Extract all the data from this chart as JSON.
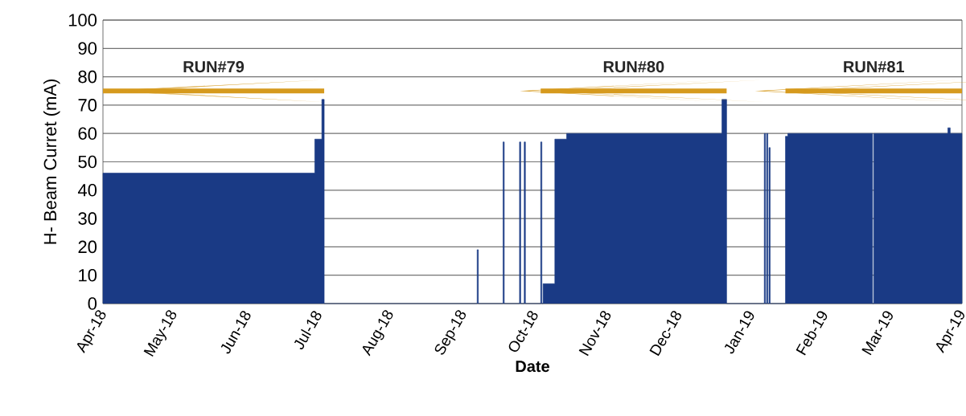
{
  "chart_data": {
    "type": "area",
    "ylabel": "H- Beam Curret (mA)",
    "xlabel": "Date",
    "x": [
      "2018-04-01",
      "2018-04-01",
      "2018-06-30",
      "2018-06-30",
      "2018-07-03",
      "2018-07-03",
      "2018-07-04",
      "2018-07-04",
      "2018-09-07",
      "2018-09-07",
      "2018-09-07T12:00",
      "2018-09-07T12:00",
      "2018-09-18",
      "2018-09-18",
      "2018-09-18T12:00",
      "2018-09-18T12:00",
      "2018-09-25",
      "2018-09-25",
      "2018-09-25T12:00",
      "2018-09-25T12:00",
      "2018-09-27",
      "2018-09-27",
      "2018-09-27T12:00",
      "2018-09-27T12:00",
      "2018-10-04",
      "2018-10-04",
      "2018-10-04T12:00",
      "2018-10-04T12:00",
      "2018-10-05",
      "2018-10-05",
      "2018-10-10",
      "2018-10-10",
      "2018-10-15",
      "2018-10-15",
      "2018-12-20",
      "2018-12-20",
      "2018-12-22",
      "2018-12-22",
      "2019-01-07",
      "2019-01-07",
      "2019-01-07T12:00",
      "2019-01-07T12:00",
      "2019-01-08",
      "2019-01-08",
      "2019-01-08T12:00",
      "2019-01-08T12:00",
      "2019-01-09",
      "2019-01-09",
      "2019-01-09T12:00",
      "2019-01-09T12:00",
      "2019-01-16",
      "2019-01-16",
      "2019-01-17",
      "2019-01-17",
      "2019-02-22",
      "2019-02-22",
      "2019-02-22T12:00",
      "2019-02-22T12:00",
      "2019-03-26",
      "2019-03-26",
      "2019-03-27",
      "2019-03-27",
      "2019-04-01",
      "2019-04-01"
    ],
    "series": [
      {
        "color": "#1a3a85",
        "values": [
          0,
          46,
          46,
          58,
          58,
          72,
          72,
          0,
          0,
          19,
          19,
          0,
          0,
          57,
          57,
          0,
          0,
          57,
          57,
          0,
          0,
          57,
          57,
          0,
          0,
          57,
          57,
          0,
          0,
          7,
          7,
          58,
          58,
          60,
          60,
          72,
          72,
          0,
          0,
          60,
          60,
          0,
          0,
          60,
          60,
          0,
          0,
          55,
          55,
          0,
          0,
          59,
          59,
          60,
          60,
          0,
          0,
          60,
          60,
          62,
          62,
          60,
          60,
          0
        ]
      },
      {
        "type": "line",
        "name": "RUN#79",
        "color": "#d69a1e",
        "x": [
          "2018-04-01",
          "2018-07-04"
        ],
        "values": [
          75,
          75
        ]
      },
      {
        "type": "line",
        "name": "RUN#80",
        "color": "#d69a1e",
        "x": [
          "2018-10-04",
          "2018-12-22"
        ],
        "values": [
          75,
          75
        ]
      },
      {
        "type": "line",
        "name": "RUN#81",
        "color": "#d69a1e",
        "x": [
          "2019-01-16",
          "2019-04-01"
        ],
        "values": [
          75,
          75
        ]
      }
    ],
    "xlim": [
      "2018-04-01",
      "2019-04-01"
    ],
    "xticks": [
      {
        "value": "2018-04-01",
        "label": "Apr-18"
      },
      {
        "value": "2018-05-01",
        "label": "May-18"
      },
      {
        "value": "2018-06-01",
        "label": "Jun-18"
      },
      {
        "value": "2018-07-01",
        "label": "Jul-18"
      },
      {
        "value": "2018-08-01",
        "label": "Aug-18"
      },
      {
        "value": "2018-09-01",
        "label": "Sep-18"
      },
      {
        "value": "2018-10-01",
        "label": "Oct-18"
      },
      {
        "value": "2018-11-01",
        "label": "Nov-18"
      },
      {
        "value": "2018-12-01",
        "label": "Dec-18"
      },
      {
        "value": "2019-01-01",
        "label": "Jan-19"
      },
      {
        "value": "2019-02-01",
        "label": "Feb-19"
      },
      {
        "value": "2019-03-01",
        "label": "Mar-19"
      },
      {
        "value": "2019-04-01",
        "label": "Apr-19"
      }
    ],
    "ylim": [
      0,
      100
    ],
    "yticks": [
      0,
      10,
      20,
      30,
      40,
      50,
      60,
      70,
      80,
      90,
      100
    ],
    "grid": "y"
  }
}
